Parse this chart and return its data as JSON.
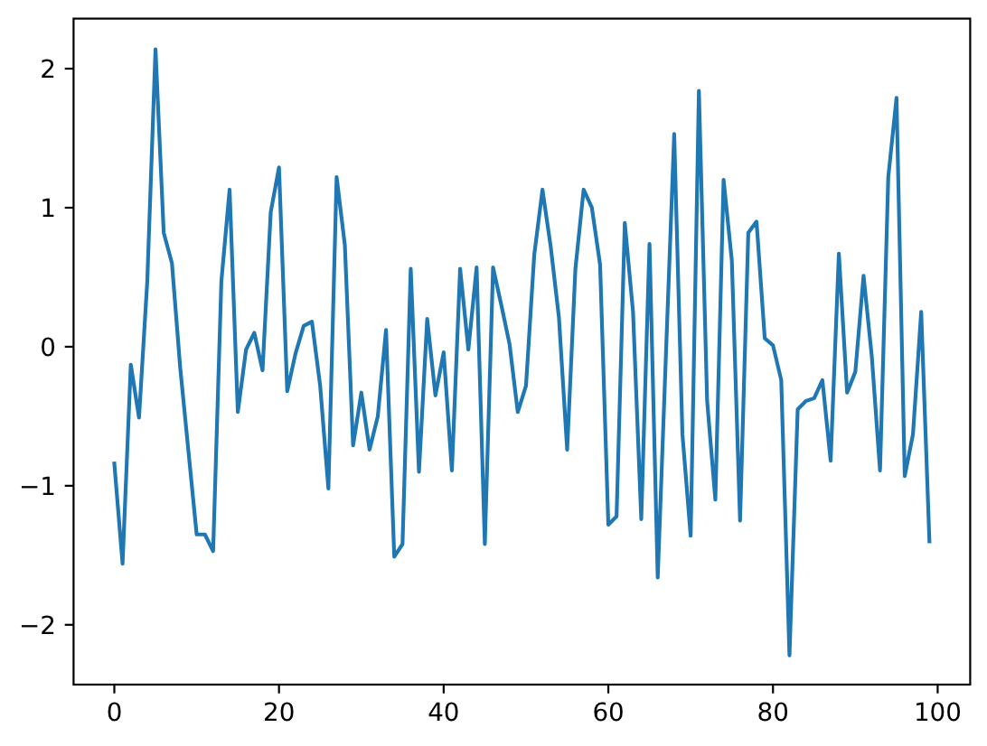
{
  "chart_data": {
    "type": "line",
    "color": "#1f77b4",
    "x": [
      0,
      1,
      2,
      3,
      4,
      5,
      6,
      7,
      8,
      9,
      10,
      11,
      12,
      13,
      14,
      15,
      16,
      17,
      18,
      19,
      20,
      21,
      22,
      23,
      24,
      25,
      26,
      27,
      28,
      29,
      30,
      31,
      32,
      33,
      34,
      35,
      36,
      37,
      38,
      39,
      40,
      41,
      42,
      43,
      44,
      45,
      46,
      47,
      48,
      49,
      50,
      51,
      52,
      53,
      54,
      55,
      56,
      57,
      58,
      59,
      60,
      61,
      62,
      63,
      64,
      65,
      66,
      67,
      68,
      69,
      70,
      71,
      72,
      73,
      74,
      75,
      76,
      77,
      78,
      79,
      80,
      81,
      82,
      83,
      84,
      85,
      86,
      87,
      88,
      89,
      90,
      91,
      92,
      93,
      94,
      95,
      96,
      97,
      98,
      99
    ],
    "values": [
      -0.84,
      -1.56,
      -0.13,
      -0.51,
      0.47,
      2.14,
      0.82,
      0.6,
      -0.15,
      -0.75,
      -1.35,
      -1.35,
      -1.47,
      0.47,
      1.13,
      -0.47,
      -0.02,
      0.1,
      -0.17,
      0.97,
      1.29,
      -0.32,
      -0.05,
      0.15,
      0.18,
      -0.28,
      -1.02,
      1.22,
      0.73,
      -0.71,
      -0.33,
      -0.74,
      -0.5,
      0.12,
      -1.51,
      -1.42,
      0.56,
      -0.9,
      0.2,
      -0.35,
      -0.04,
      -0.89,
      0.56,
      -0.02,
      0.57,
      -1.42,
      0.57,
      0.3,
      0.02,
      -0.47,
      -0.28,
      0.66,
      1.13,
      0.72,
      0.21,
      -0.74,
      0.56,
      1.13,
      1.0,
      0.59,
      -1.28,
      -1.22,
      0.89,
      0.25,
      -1.24,
      0.74,
      -1.66,
      -0.05,
      1.53,
      -0.63,
      -1.36,
      1.84,
      -0.39,
      -1.1,
      1.2,
      0.62,
      -1.25,
      0.82,
      0.9,
      0.06,
      0.01,
      -0.24,
      -2.22,
      -0.45,
      -0.39,
      -0.37,
      -0.24,
      -0.82,
      0.67,
      -0.33,
      -0.18,
      0.51,
      -0.07,
      -0.89,
      1.22,
      1.79,
      -0.93,
      -0.63,
      0.25,
      -1.4
    ],
    "xlim": [
      -4.95,
      103.95
    ],
    "ylim": [
      -2.43,
      2.36
    ],
    "xticks": [
      0,
      20,
      40,
      60,
      80,
      100
    ],
    "yticks": [
      {
        "value": -2,
        "label": "−2"
      },
      {
        "value": -1,
        "label": "−1"
      },
      0,
      1,
      2
    ]
  }
}
